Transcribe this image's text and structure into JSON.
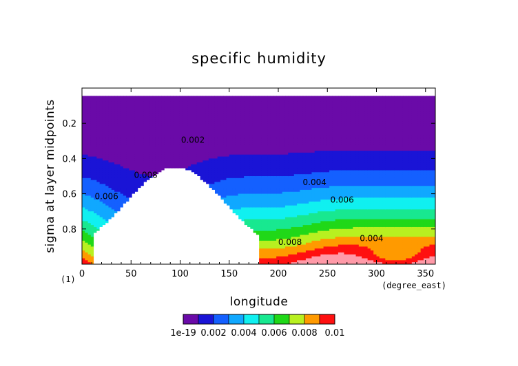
{
  "colors": {
    "levels": [
      "#6a0aa8",
      "#1a14d6",
      "#1460ff",
      "#10a8ff",
      "#10f0f0",
      "#18e890",
      "#20d818",
      "#b8f020",
      "#ff9a00",
      "#ff1010",
      "#ff9aa8"
    ],
    "below": "#ffffff"
  },
  "chart_data": {
    "type": "heatmap",
    "title": "specific humidity",
    "xlabel": "longitude",
    "ylabel": "sigma at layer midpoints",
    "x_unit": "(degree_east)",
    "y_unit": "(1)",
    "xlim": [
      0,
      360
    ],
    "ylim": [
      1.0,
      0.0
    ],
    "x_ticks": [
      "0",
      "50",
      "100",
      "150",
      "200",
      "250",
      "300",
      "350"
    ],
    "y_ticks": [
      "0.2",
      "0.4",
      "0.6",
      "0.8"
    ],
    "levels": [
      1e-19,
      0.001,
      0.002,
      0.003,
      0.004,
      0.005,
      0.006,
      0.007,
      0.008,
      0.009,
      0.01
    ],
    "colorbar_labels": [
      "1e-19",
      "0.002",
      "0.004",
      "0.006",
      "0.008",
      "0.01"
    ],
    "contour_labels": [
      {
        "text": "0.002",
        "lon": 113,
        "sigma": 0.31
      },
      {
        "text": "0.004",
        "lon": 237,
        "sigma": 0.55
      },
      {
        "text": "0.006",
        "lon": 265,
        "sigma": 0.65
      },
      {
        "text": "0.008",
        "lon": 212,
        "sigma": 0.89
      },
      {
        "text": "0.004",
        "lon": 295,
        "sigma": 0.87
      },
      {
        "text": "0.008",
        "lon": 65,
        "sigma": 0.51
      },
      {
        "text": "0.006",
        "lon": 25,
        "sigma": 0.63
      }
    ]
  }
}
